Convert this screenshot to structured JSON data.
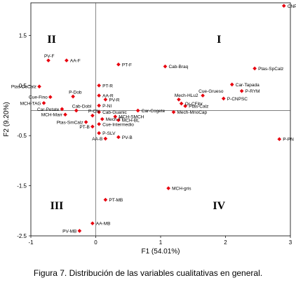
{
  "chart_data": {
    "type": "scatter",
    "xlabel": "F1 (54.01%)",
    "ylabel": "F2 (9.20%)",
    "xlim": [
      -1,
      3
    ],
    "ylim": [
      -2.5,
      2.0
    ],
    "xticks": [
      "-1",
      "0",
      "1",
      "2",
      "3"
    ],
    "yticks": [
      "1.5",
      "0.5",
      "-0.5",
      "-1.5",
      "-2.5"
    ],
    "grid": false,
    "marker_color": "#e8000e",
    "quadrants": [
      "I",
      "II",
      "III",
      "IV"
    ],
    "points": [
      {
        "label": "CNPC",
        "x": 2.9,
        "y": 2.09
      },
      {
        "label": "PV-F",
        "x": -0.73,
        "y": 1.0
      },
      {
        "label": "AA-F",
        "x": -0.45,
        "y": 1.0
      },
      {
        "label": "PT-F",
        "x": 0.35,
        "y": 0.92
      },
      {
        "label": "Cab-Braq",
        "x": 1.07,
        "y": 0.88
      },
      {
        "label": "Ptas-SpCalz",
        "x": 2.45,
        "y": 0.84
      },
      {
        "label": "Ptas-DsCalz",
        "x": -0.87,
        "y": 0.48
      },
      {
        "label": "PT-R",
        "x": 0.05,
        "y": 0.5
      },
      {
        "label": "Car-Tapada",
        "x": 2.1,
        "y": 0.52
      },
      {
        "label": "P-RYM",
        "x": 2.25,
        "y": 0.39
      },
      {
        "label": "Cue-Fino",
        "x": -0.7,
        "y": 0.27
      },
      {
        "label": "P-Dob",
        "x": -0.35,
        "y": 0.28
      },
      {
        "label": "AA-R",
        "x": 0.05,
        "y": 0.3
      },
      {
        "label": "PV-R",
        "x": 0.15,
        "y": 0.22
      },
      {
        "label": "Mech-HLu2",
        "x": 1.28,
        "y": 0.22
      },
      {
        "label": "Cue-Grueso",
        "x": 1.65,
        "y": 0.3
      },
      {
        "label": "P-CNPSC",
        "x": 1.97,
        "y": 0.24
      },
      {
        "label": "MCH-TAG",
        "x": -0.8,
        "y": 0.15
      },
      {
        "label": "P-NI",
        "x": 0.05,
        "y": 0.1
      },
      {
        "label": "Or-CFibr",
        "x": 1.32,
        "y": 0.14
      },
      {
        "label": "Ptas-Calz",
        "x": 1.38,
        "y": 0.09
      },
      {
        "label": "Car-Petate",
        "x": -0.52,
        "y": 0.03
      },
      {
        "label": "Cab-Dobl",
        "x": -0.3,
        "y": 0.0
      },
      {
        "label": "Cab-Guanic",
        "x": 0.05,
        "y": -0.03
      },
      {
        "label": "Car-Cogete",
        "x": 0.65,
        "y": 0.0
      },
      {
        "label": "Mech-MnoCap",
        "x": 1.2,
        "y": -0.03
      },
      {
        "label": "MCH-Marr",
        "x": -0.47,
        "y": -0.08
      },
      {
        "label": "P-CN",
        "x": -0.05,
        "y": -0.1
      },
      {
        "label": "MCH-SMCH",
        "x": 0.3,
        "y": -0.12
      },
      {
        "label": "Mech-TT",
        "x": 0.1,
        "y": -0.17
      },
      {
        "label": "MCH-BL",
        "x": 0.35,
        "y": -0.19
      },
      {
        "label": "Ptas-SmCalz",
        "x": -0.15,
        "y": -0.23
      },
      {
        "label": "Cue-Intermedio",
        "x": 0.05,
        "y": -0.27
      },
      {
        "label": "PT-B",
        "x": -0.05,
        "y": -0.32
      },
      {
        "label": "P-SLV",
        "x": 0.05,
        "y": -0.45
      },
      {
        "label": "PV-B",
        "x": 0.35,
        "y": -0.53
      },
      {
        "label": "AA-B",
        "x": 0.15,
        "y": -0.56
      },
      {
        "label": "P-PN",
        "x": 2.83,
        "y": -0.57
      },
      {
        "label": "MCH-gris",
        "x": 1.12,
        "y": -1.55
      },
      {
        "label": "PT-MB",
        "x": 0.15,
        "y": -1.78
      },
      {
        "label": "AA-MB",
        "x": -0.05,
        "y": -2.25
      },
      {
        "label": "PV-MB",
        "x": -0.25,
        "y": -2.4
      }
    ]
  },
  "caption": "Figura 7.  Distribución de las variables cualitativas en general."
}
